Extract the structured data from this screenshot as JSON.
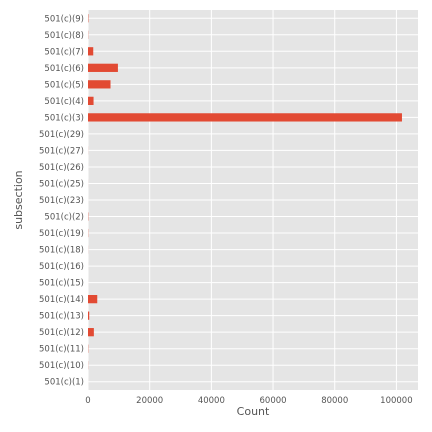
{
  "chart_data": {
    "type": "bar",
    "orientation": "horizontal",
    "xlabel": "Count",
    "ylabel": "subsection",
    "xlim": [
      0,
      107000
    ],
    "xticks": [
      0,
      20000,
      40000,
      60000,
      80000,
      100000
    ],
    "xtick_labels": [
      "0",
      "20000",
      "40000",
      "60000",
      "80000",
      "100000"
    ],
    "grid": true,
    "style": "ggplot",
    "bar_color": "#E24A33",
    "background_color": "#E5E5E5",
    "categories": [
      "501(c)(9)",
      "501(c)(8)",
      "501(c)(7)",
      "501(c)(6)",
      "501(c)(5)",
      "501(c)(4)",
      "501(c)(3)",
      "501(c)(29)",
      "501(c)(27)",
      "501(c)(26)",
      "501(c)(25)",
      "501(c)(23)",
      "501(c)(2)",
      "501(c)(19)",
      "501(c)(18)",
      "501(c)(16)",
      "501(c)(15)",
      "501(c)(14)",
      "501(c)(13)",
      "501(c)(12)",
      "501(c)(11)",
      "501(c)(10)",
      "501(c)(1)"
    ],
    "values": [
      120,
      60,
      1700,
      9700,
      7300,
      1800,
      101800,
      5,
      20,
      5,
      10,
      5,
      90,
      60,
      20,
      5,
      5,
      3000,
      400,
      1900,
      80,
      40,
      5
    ]
  }
}
